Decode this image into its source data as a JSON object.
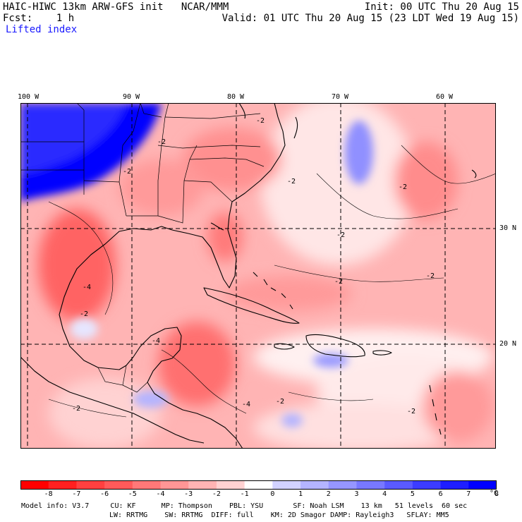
{
  "header": {
    "title": "HAIC-HIWC 13km ARW-GFS init   NCAR/MMM",
    "fcst": "Fcst:    1 h",
    "field": "Lifted index",
    "init": "Init: 00 UTC Thu 20 Aug 15",
    "valid": "Valid: 01 UTC Thu 20 Aug 15 (23 LDT Wed 19 Aug 15)"
  },
  "axes": {
    "lon_labels": [
      "100 W",
      "90 W",
      "80 W",
      "70 W",
      "60 W"
    ],
    "lat_labels": [
      "30 N",
      "20 N"
    ]
  },
  "contour_labels": [
    "-2",
    "-2",
    "-2",
    "-2",
    "-2",
    "-2",
    "-2",
    "-4",
    "-4",
    "-4",
    "-2",
    "-2",
    "-2",
    "-2",
    "-2"
  ],
  "colorbar": {
    "labels": [
      "-8",
      "-7",
      "-6",
      "-5",
      "-4",
      "-3",
      "-2",
      "-1",
      "0",
      "1",
      "2",
      "3",
      "4",
      "5",
      "6",
      "7",
      "8"
    ],
    "unit": "°C",
    "colors": [
      "#ff0000",
      "#ff2020",
      "#ff4040",
      "#ff5a5a",
      "#ff7878",
      "#ff9696",
      "#ffb4b4",
      "#ffd2d2",
      "#ffffff",
      "#d2d2ff",
      "#b4b4ff",
      "#9696ff",
      "#7878ff",
      "#5a5aff",
      "#3c3cff",
      "#1e1eff",
      "#0000ff"
    ]
  },
  "footer": {
    "line1": "Model info: V3.7     CU: KF      MP: Thompson    PBL: YSU       SF: Noah LSM    13 km   51 levels  60 sec",
    "line2": "LW: RRTMG    SW: RRTMG  DIFF: full    KM: 2D Smagor DAMP: Rayleigh3   SFLAY: MM5"
  }
}
